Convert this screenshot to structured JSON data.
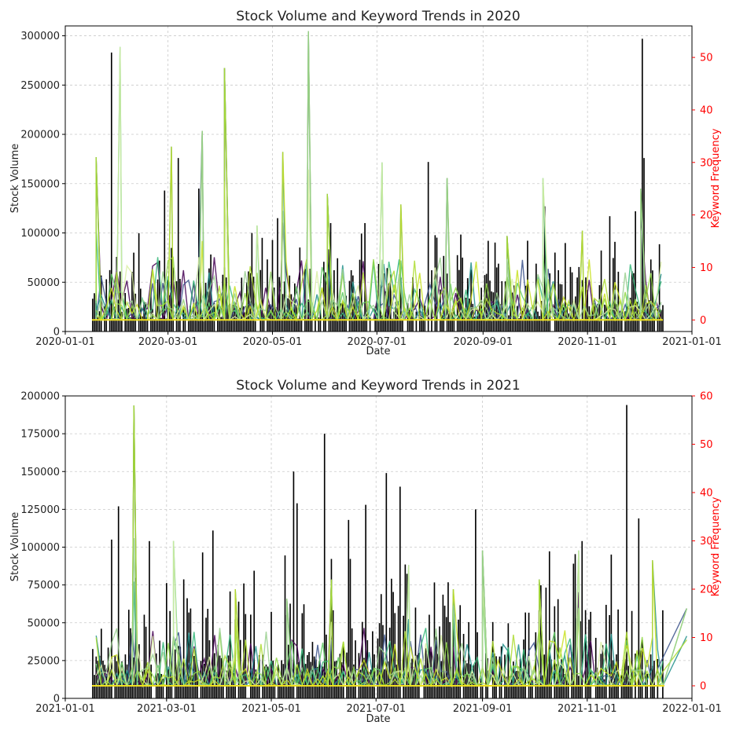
{
  "chart_data": [
    {
      "type": "bar+line",
      "title": "Stock Volume and Keyword Trends in 2020",
      "xlabel": "Date",
      "ylabel": "Stock Volume",
      "y2label": "Keyword Frequency",
      "xlim": [
        "2020-01-01",
        "2021-01-01"
      ],
      "ylim": [
        0,
        310000
      ],
      "y2lim": [
        -2.2,
        56
      ],
      "x_ticks": [
        "2020-01-01",
        "2020-03-01",
        "2020-05-01",
        "2020-07-01",
        "2020-09-01",
        "2020-11-01",
        "2021-01-01"
      ],
      "y_ticks": [
        0,
        50000,
        100000,
        150000,
        200000,
        250000,
        300000
      ],
      "y2_ticks": [
        0,
        10,
        20,
        30,
        40,
        50
      ],
      "grid": true,
      "bar_color": "#000000",
      "y2_color": "#ff0000",
      "volume_spikes": [
        {
          "date": "2020-01-28",
          "volume": 283000
        },
        {
          "date": "2020-02-10",
          "volume": 80000
        },
        {
          "date": "2020-02-28",
          "volume": 143000
        },
        {
          "date": "2020-03-07",
          "volume": 176000
        },
        {
          "date": "2020-03-19",
          "volume": 145000
        },
        {
          "date": "2020-04-25",
          "volume": 95000
        },
        {
          "date": "2020-05-04",
          "volume": 115000
        },
        {
          "date": "2020-06-04",
          "volume": 110000
        },
        {
          "date": "2020-06-24",
          "volume": 110000
        },
        {
          "date": "2020-07-22",
          "volume": 55000
        },
        {
          "date": "2020-07-31",
          "volume": 172000
        },
        {
          "date": "2020-08-20",
          "volume": 75000
        },
        {
          "date": "2020-09-04",
          "volume": 92000
        },
        {
          "date": "2020-10-07",
          "volume": 127000
        },
        {
          "date": "2020-11-14",
          "volume": 117000
        },
        {
          "date": "2020-11-29",
          "volume": 122000
        },
        {
          "date": "2020-12-03",
          "volume": 297000
        },
        {
          "date": "2020-12-04",
          "volume": 176000
        },
        {
          "date": "2020-12-17",
          "volume": 138000
        },
        {
          "date": "2020-12-28",
          "volume": 82000
        }
      ],
      "keyword_spikes": [
        {
          "date": "2020-01-19",
          "value": 31
        },
        {
          "date": "2020-02-02",
          "value": 52
        },
        {
          "date": "2020-03-03",
          "value": 33
        },
        {
          "date": "2020-03-21",
          "value": 36
        },
        {
          "date": "2020-04-03",
          "value": 48
        },
        {
          "date": "2020-04-22",
          "value": 18
        },
        {
          "date": "2020-05-07",
          "value": 32
        },
        {
          "date": "2020-05-22",
          "value": 55
        },
        {
          "date": "2020-06-02",
          "value": 24
        },
        {
          "date": "2020-07-04",
          "value": 30
        },
        {
          "date": "2020-07-15",
          "value": 22
        },
        {
          "date": "2020-08-11",
          "value": 27
        },
        {
          "date": "2020-09-15",
          "value": 16
        },
        {
          "date": "2020-10-06",
          "value": 27
        },
        {
          "date": "2020-10-29",
          "value": 17
        },
        {
          "date": "2020-12-02",
          "value": 25
        }
      ]
    },
    {
      "type": "bar+line",
      "title": "Stock Volume and Keyword Trends in 2021",
      "xlabel": "Date",
      "ylabel": "Stock Volume",
      "y2label": "Keyword Frequency",
      "xlim": [
        "2021-01-01",
        "2022-01-01"
      ],
      "ylim": [
        0,
        200000
      ],
      "y2lim": [
        -2.6,
        60
      ],
      "x_ticks": [
        "2021-01-01",
        "2021-03-01",
        "2021-05-01",
        "2021-07-01",
        "2021-09-01",
        "2021-11-01",
        "2022-01-01"
      ],
      "y_ticks": [
        0,
        25000,
        50000,
        75000,
        100000,
        125000,
        150000,
        175000,
        200000
      ],
      "y2_ticks": [
        0,
        10,
        20,
        30,
        40,
        50,
        60
      ],
      "grid": true,
      "bar_color": "#000000",
      "y2_color": "#ff0000",
      "volume_spikes": [
        {
          "date": "2021-01-05",
          "volume": 143000
        },
        {
          "date": "2021-01-09",
          "volume": 135000
        },
        {
          "date": "2021-01-12",
          "volume": 131000
        },
        {
          "date": "2021-01-28",
          "volume": 105000
        },
        {
          "date": "2021-02-01",
          "volume": 127000
        },
        {
          "date": "2021-02-19",
          "volume": 104000
        },
        {
          "date": "2021-03-28",
          "volume": 111000
        },
        {
          "date": "2021-04-15",
          "volume": 76000
        },
        {
          "date": "2021-05-14",
          "volume": 150000
        },
        {
          "date": "2021-05-16",
          "volume": 129000
        },
        {
          "date": "2021-06-01",
          "volume": 175000
        },
        {
          "date": "2021-06-15",
          "volume": 118000
        },
        {
          "date": "2021-06-25",
          "volume": 128000
        },
        {
          "date": "2021-07-07",
          "volume": 149000
        },
        {
          "date": "2021-07-15",
          "volume": 140000
        },
        {
          "date": "2021-08-28",
          "volume": 125000
        },
        {
          "date": "2021-10-29",
          "volume": 104000
        },
        {
          "date": "2021-11-24",
          "volume": 194000
        },
        {
          "date": "2021-12-01",
          "volume": 119000
        }
      ],
      "keyword_spikes": [
        {
          "date": "2021-02-10",
          "value": 58
        },
        {
          "date": "2021-03-05",
          "value": 30
        },
        {
          "date": "2021-04-10",
          "value": 20
        },
        {
          "date": "2021-05-10",
          "value": 18
        },
        {
          "date": "2021-06-05",
          "value": 22
        },
        {
          "date": "2021-07-20",
          "value": 25
        },
        {
          "date": "2021-08-15",
          "value": 20
        },
        {
          "date": "2021-09-01",
          "value": 28
        },
        {
          "date": "2021-10-04",
          "value": 22
        },
        {
          "date": "2021-10-27",
          "value": 28
        },
        {
          "date": "2021-12-09",
          "value": 26
        },
        {
          "date": "2021-12-29",
          "value": 16
        }
      ]
    }
  ],
  "palette": [
    "#440154",
    "#3b528b",
    "#21918c",
    "#35b779",
    "#5ec962",
    "#8fd744",
    "#c8e020",
    "#d9f0a3",
    "#addc30",
    "#9ad08f"
  ],
  "keyword_baseline_color": "#f0e020"
}
